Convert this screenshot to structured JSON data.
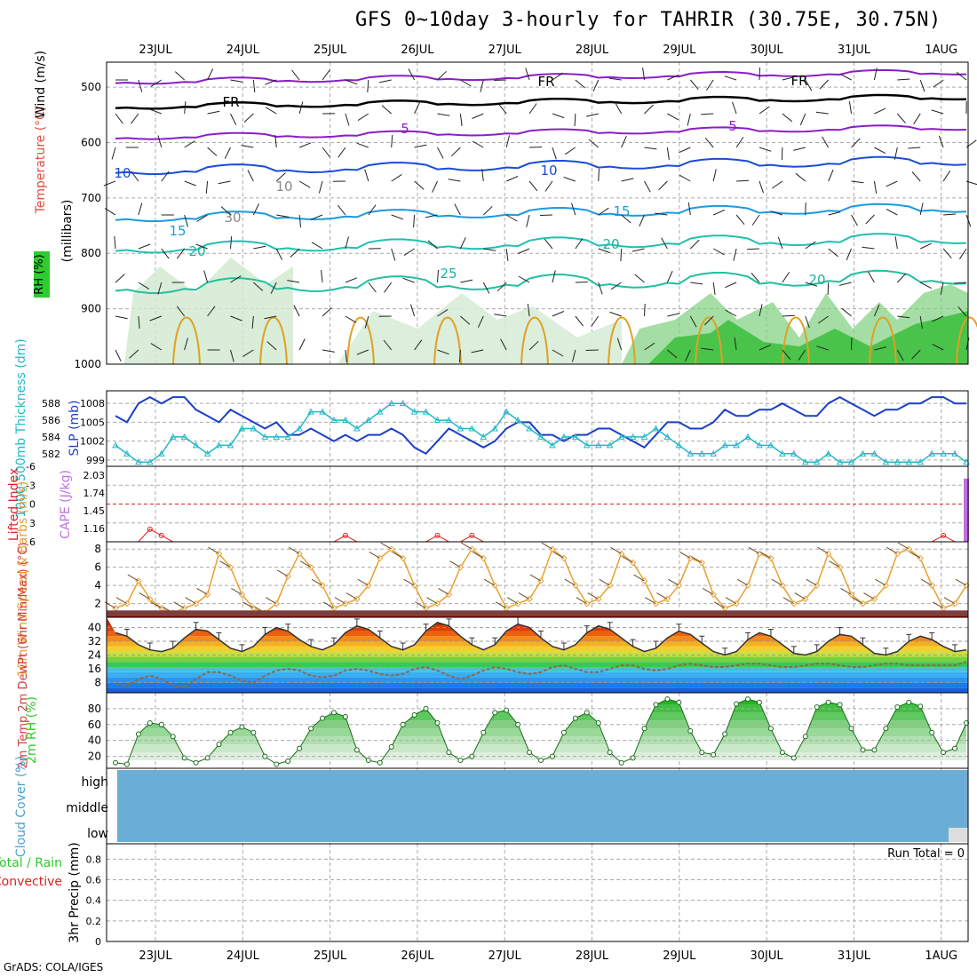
{
  "title": "GFS 0~10day 3-hourly for TAHRIR (30.75E, 30.75N)",
  "footer": "GrADS: COLA/IGES",
  "run_total": "Run Total = 0",
  "dates": [
    "23JUL",
    "24JUL",
    "25JUL",
    "26JUL",
    "27JUL",
    "28JUL",
    "29JUL",
    "30JUL",
    "31JUL",
    "1AUG"
  ],
  "colors": {
    "frame": "#000000",
    "grid": "#aaaaaa",
    "slp": "#1a3fc8",
    "thickness": "#22b8c8",
    "lifted_index": "#e02020",
    "cape": "#c070e0",
    "wind_speed": "#e8a030",
    "barb": "#6b4a2a",
    "rh": "#2ecc2e",
    "cloud": "#6aaed6"
  },
  "panels": {
    "upper_air": {
      "ylabels": [
        "Temperature (°C)",
        "Wind (m/s)",
        "RH (%)",
        "(millibars)"
      ],
      "yticks": [
        "500",
        "600",
        "700",
        "800",
        "900",
        "1000"
      ],
      "contour_labels": [
        "FR",
        "FR",
        "FR",
        "5",
        "5",
        "10",
        "10",
        "10",
        "15",
        "15",
        "20",
        "20",
        "20",
        "25",
        "30"
      ]
    },
    "slp_thickness": {
      "ylabel_left": "1000-500mb Thickness (dm)",
      "ylabel_right": "SLP (mb)",
      "left_ticks": [
        "588",
        "586",
        "584",
        "582"
      ],
      "right_ticks": [
        "1008",
        "1005",
        "1002",
        "999"
      ]
    },
    "li_cape": {
      "ylabel_left": "Lifted Index",
      "ylabel_right": "CAPE (J/kg)",
      "left_ticks": [
        "-6",
        "-3",
        "0",
        "3",
        "6"
      ],
      "right_ticks": [
        "2.03",
        "1.74",
        "1.45",
        "1.16"
      ]
    },
    "wind10m": {
      "ylabel": "10m Wind Speed & Barbs (m/s)",
      "yticks": [
        "8",
        "6",
        "4",
        "2"
      ]
    },
    "temp2m": {
      "ylabel": "2m Temp 2m DewPt (6hr Min/Max) (°C)",
      "yticks": [
        "40",
        "32",
        "24",
        "16",
        "8"
      ]
    },
    "rh2m": {
      "ylabel": "2m RH (%)",
      "yticks": [
        "80",
        "60",
        "40",
        "20"
      ]
    },
    "cloud": {
      "ylabel": "Cloud Cover (%)",
      "levels": [
        "high",
        "middle",
        "low"
      ]
    },
    "precip": {
      "ylabel": "3hr Precip (mm)",
      "legend_total": "Total / Rain",
      "legend_conv": "Convective",
      "yticks": [
        "0.8",
        "0.6",
        "0.4",
        "0.2",
        "0"
      ]
    }
  },
  "chart_data": {
    "type": "line",
    "title": "GFS 0~10day 3-hourly for TAHRIR (30.75E, 30.75N)",
    "x_unit": "3-hourly steps",
    "x_labels": [
      "23JUL",
      "24JUL",
      "25JUL",
      "26JUL",
      "27JUL",
      "28JUL",
      "29JUL",
      "30JUL",
      "31JUL",
      "1AUG"
    ],
    "slp_mb": [
      1006,
      1005,
      1008,
      1009,
      1008,
      1009,
      1009,
      1007,
      1006,
      1005,
      1007,
      1006,
      1005,
      1004,
      1005,
      1003,
      1003,
      1004,
      1003,
      1002,
      1003,
      1002,
      1003,
      1003,
      1004,
      1003,
      1001,
      1000,
      1002,
      1004,
      1003,
      1002,
      1001,
      1002,
      1004,
      1005,
      1005,
      1003,
      1003,
      1002,
      1003,
      1003,
      1004,
      1004,
      1003,
      1002,
      1001,
      1003,
      1005,
      1005,
      1004,
      1004,
      1005,
      1007,
      1006,
      1006,
      1007,
      1007,
      1008,
      1007,
      1006,
      1006,
      1008,
      1009,
      1008,
      1007,
      1006,
      1007,
      1007,
      1008,
      1008,
      1009,
      1009,
      1008,
      1008
    ],
    "thickness_dm": [
      583,
      582,
      581,
      581,
      582,
      584,
      584,
      583,
      582,
      583,
      583,
      585,
      585,
      584,
      584,
      584,
      585,
      587,
      587,
      586,
      586,
      585,
      586,
      587,
      588,
      588,
      587,
      587,
      586,
      586,
      585,
      585,
      584,
      585,
      587,
      586,
      585,
      584,
      583,
      584,
      584,
      583,
      583,
      583,
      584,
      584,
      584,
      585,
      584,
      583,
      582,
      582,
      582,
      583,
      583,
      584,
      583,
      583,
      582,
      582,
      581,
      581,
      582,
      581,
      581,
      582,
      582,
      581,
      581,
      581,
      581,
      582,
      582,
      582,
      581
    ],
    "lifted_index": [
      6,
      6,
      6,
      4,
      5,
      6,
      6,
      6,
      6,
      6,
      6,
      6,
      6,
      6,
      6,
      6,
      6,
      6,
      6,
      6,
      5,
      6,
      6,
      6,
      6,
      6,
      6,
      6,
      5,
      6,
      6,
      5,
      6,
      6,
      6,
      6,
      6,
      6,
      6,
      6,
      6,
      6,
      6,
      6,
      6,
      6,
      6,
      6,
      6,
      6,
      6,
      6,
      6,
      6,
      6,
      6,
      6,
      6,
      6,
      6,
      6,
      6,
      6,
      6,
      6,
      6,
      6,
      6,
      6,
      6,
      6,
      6,
      5,
      6,
      6
    ],
    "cape_jkg": [
      0,
      0,
      0,
      0,
      0,
      0,
      0,
      0,
      0,
      0,
      0,
      0,
      0,
      0,
      0,
      0,
      0,
      0,
      0,
      0,
      0,
      0,
      0,
      0,
      0,
      0,
      0,
      0,
      0,
      0,
      0,
      0,
      0,
      0,
      0,
      0,
      0,
      0,
      0,
      0,
      0,
      0,
      0,
      0,
      0,
      0,
      0,
      0,
      0,
      0,
      0,
      0,
      0,
      0,
      0,
      0,
      0,
      0,
      0,
      0,
      0,
      0,
      0,
      0,
      0,
      0,
      0,
      0,
      0,
      0,
      0,
      0,
      0,
      0,
      2.0
    ],
    "wind10m_ms": [
      1.5,
      2,
      4.5,
      2.5,
      1.5,
      1,
      1.5,
      2,
      3,
      7.5,
      6,
      3,
      1.5,
      1,
      2,
      5,
      7.5,
      6,
      4,
      1.5,
      2,
      2.5,
      4,
      7,
      8,
      7,
      4,
      1.5,
      2,
      3,
      6,
      8,
      7,
      4,
      1.5,
      2,
      2.5,
      4.5,
      8,
      7,
      4,
      2,
      2.5,
      4,
      7.5,
      6.5,
      4.5,
      2,
      2.5,
      4,
      7,
      6.5,
      3,
      1.5,
      2,
      4,
      7.5,
      7,
      4,
      2,
      2.5,
      4,
      7.5,
      6,
      3,
      2,
      2.5,
      4,
      7.5,
      8,
      7,
      4,
      1.5,
      2,
      4
    ],
    "temp2m_c": [
      37,
      35,
      30,
      27,
      26,
      28,
      34,
      39,
      38,
      33,
      28,
      26,
      29,
      36,
      40,
      38,
      33,
      29,
      27,
      30,
      37,
      41,
      39,
      34,
      29,
      27,
      30,
      38,
      43,
      41,
      35,
      30,
      27,
      30,
      38,
      42,
      40,
      34,
      29,
      27,
      30,
      37,
      41,
      39,
      34,
      29,
      26,
      28,
      34,
      38,
      36,
      31,
      26,
      24,
      26,
      33,
      37,
      35,
      30,
      25,
      24,
      26,
      32,
      36,
      35,
      30,
      25,
      24,
      26,
      32,
      35,
      33,
      29,
      26,
      27
    ],
    "dewpt2m_c": [
      7,
      6,
      10,
      12,
      10,
      6,
      5,
      10,
      14,
      14,
      12,
      9,
      8,
      12,
      15,
      16,
      15,
      12,
      11,
      12,
      15,
      16,
      15,
      13,
      12,
      13,
      16,
      17,
      15,
      12,
      10,
      12,
      15,
      17,
      16,
      14,
      13,
      14,
      17,
      18,
      16,
      14,
      14,
      16,
      18,
      18,
      16,
      15,
      16,
      18,
      19,
      18,
      17,
      17,
      18,
      19,
      19,
      18,
      17,
      17,
      18,
      19,
      19,
      18,
      17,
      17,
      18,
      19,
      19,
      18,
      18,
      18,
      18,
      18,
      20
    ],
    "rh2m_pct": [
      12,
      10,
      48,
      62,
      60,
      45,
      18,
      12,
      18,
      35,
      50,
      57,
      50,
      20,
      10,
      14,
      30,
      55,
      68,
      75,
      70,
      28,
      15,
      12,
      32,
      60,
      72,
      80,
      62,
      25,
      15,
      20,
      50,
      75,
      78,
      60,
      25,
      15,
      20,
      50,
      68,
      75,
      62,
      25,
      12,
      18,
      55,
      85,
      92,
      88,
      52,
      25,
      22,
      48,
      86,
      92,
      88,
      55,
      25,
      18,
      45,
      82,
      88,
      85,
      55,
      28,
      28,
      55,
      82,
      88,
      83,
      50,
      25,
      30,
      62
    ]
  }
}
